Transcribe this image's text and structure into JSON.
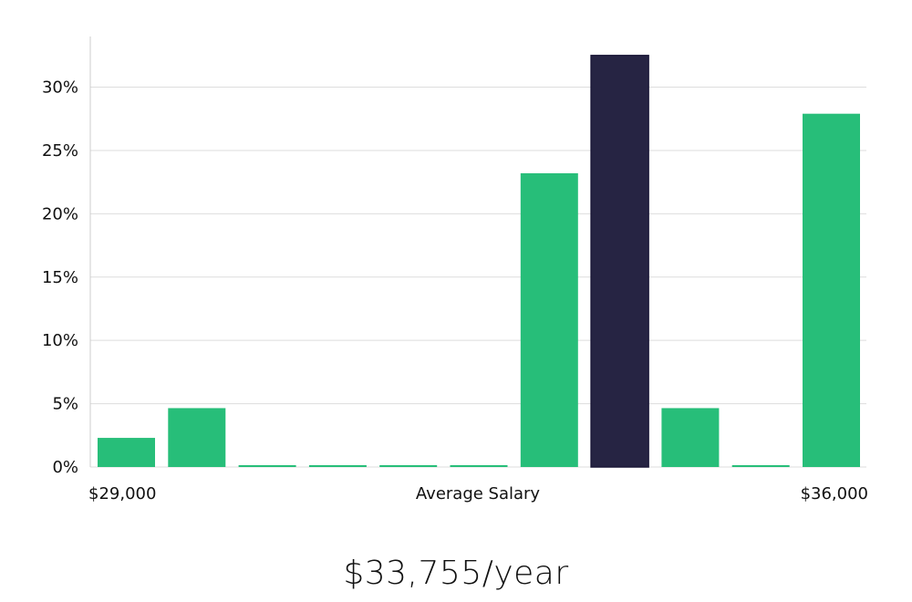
{
  "chart_data": {
    "type": "bar",
    "title": "",
    "xlabel": "Average Salary",
    "ylabel": "",
    "x_start_label": "$29,000",
    "x_end_label": "$36,000",
    "y_ticks": [
      "0%",
      "5%",
      "10%",
      "15%",
      "20%",
      "25%",
      "30%"
    ],
    "y_tick_values": [
      0,
      5,
      10,
      15,
      20,
      25,
      30
    ],
    "ylim": [
      0,
      34
    ],
    "grid": true,
    "values": [
      2.3,
      4.65,
      0,
      0,
      0,
      0,
      23.2,
      32.5,
      4.65,
      0,
      27.9
    ],
    "highlight_index": 7,
    "colors": {
      "bar": "#27be79",
      "highlight": "#262443",
      "grid": "#dddddd",
      "axis": "#cccccc"
    }
  },
  "summary": {
    "salary": "$33,755/year"
  }
}
